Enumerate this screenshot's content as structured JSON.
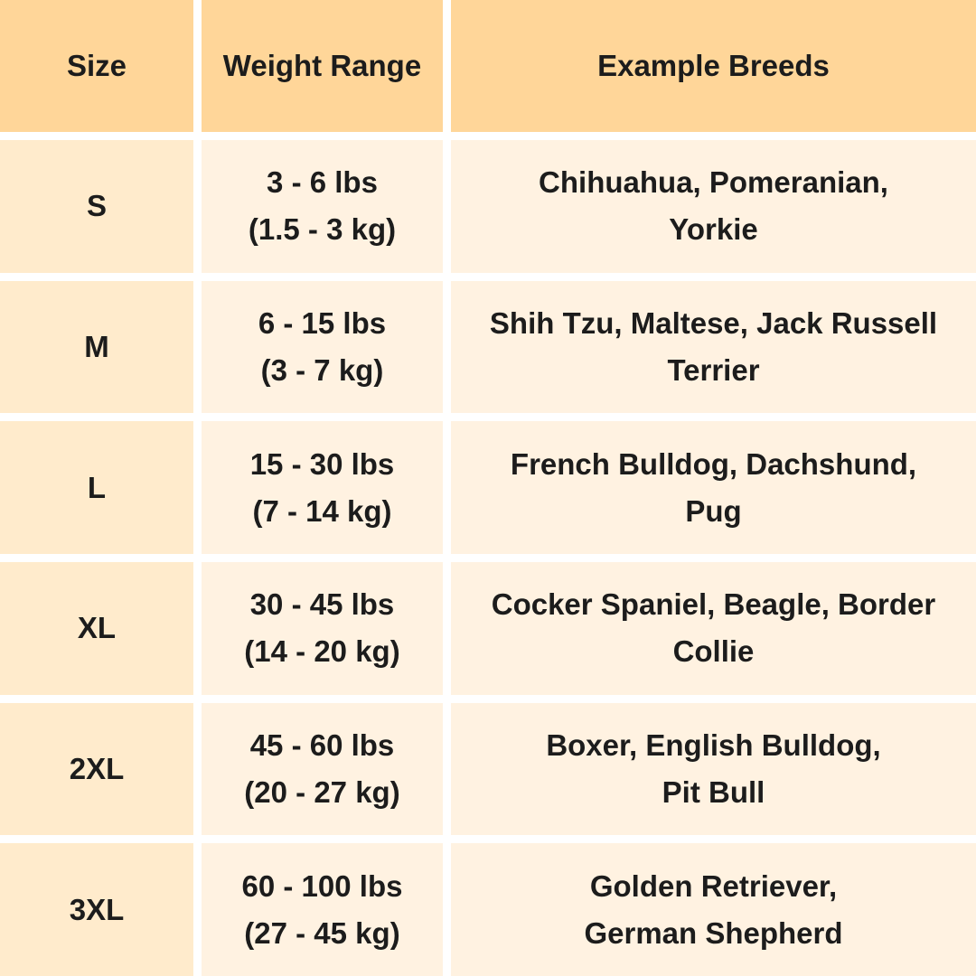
{
  "headers": [
    "Size",
    "Weight Range",
    "Example Breeds"
  ],
  "rows": [
    {
      "size": "S",
      "weight": [
        "3 - 6 lbs",
        "(1.5 - 3 kg)"
      ],
      "breeds": [
        "Chihuahua, Pomeranian,",
        "Yorkie"
      ]
    },
    {
      "size": "M",
      "weight": [
        "6 - 15 lbs",
        "(3 - 7 kg)"
      ],
      "breeds": [
        "Shih Tzu, Maltese, Jack Russell",
        "Terrier"
      ]
    },
    {
      "size": "L",
      "weight": [
        "15 - 30 lbs",
        "(7 - 14 kg)"
      ],
      "breeds": [
        "French Bulldog, Dachshund,",
        "Pug"
      ]
    },
    {
      "size": "XL",
      "weight": [
        "30 - 45 lbs",
        "(14 - 20 kg)"
      ],
      "breeds": [
        "Cocker Spaniel, Beagle, Border",
        "Collie"
      ]
    },
    {
      "size": "2XL",
      "weight": [
        "45 - 60 lbs",
        "(20 - 27 kg)"
      ],
      "breeds": [
        "Boxer, English Bulldog,",
        "Pit Bull"
      ]
    },
    {
      "size": "3XL",
      "weight": [
        "60 - 100 lbs",
        "(27 - 45 kg)"
      ],
      "breeds": [
        "Golden Retriever,",
        "German Shepherd"
      ]
    }
  ],
  "colors": {
    "header": "#FFD699",
    "first_column": "#FFEBCC",
    "body": "#FFF2E1",
    "text": "#1c1c1c"
  }
}
